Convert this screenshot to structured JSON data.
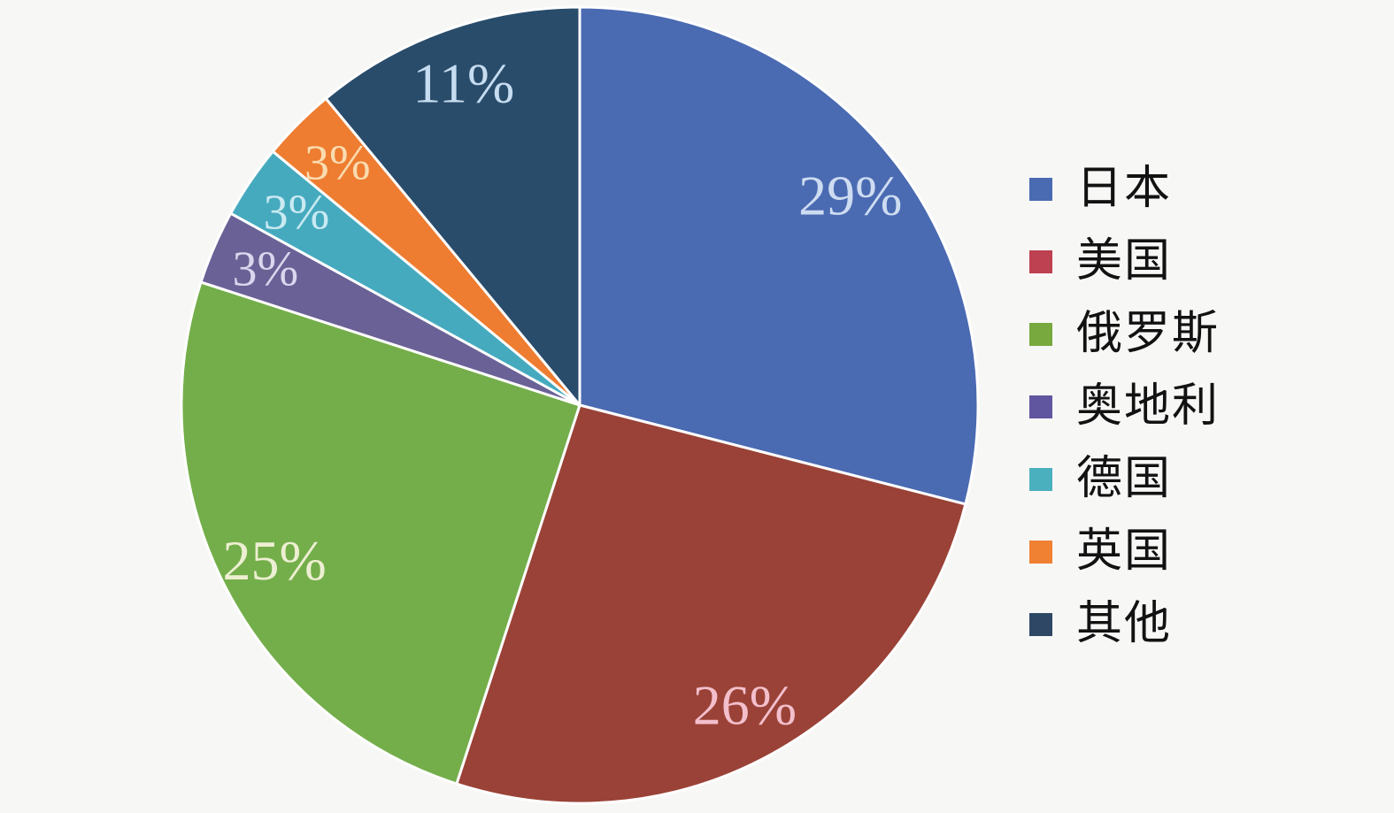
{
  "chart_data": {
    "type": "pie",
    "direction": "clockwise",
    "start_angle_deg": 0,
    "label_radius": 0.86,
    "label_suffix": "%",
    "background": "#f7f7f6",
    "slice_stroke": "#ffffff",
    "legend_position": "right",
    "slices": [
      {
        "id": "japan",
        "label": "日本",
        "value": 29,
        "display": "29%",
        "color": "#4a6ab2",
        "legend_color": "#4a6ab2",
        "label_color": "#cddcf1"
      },
      {
        "id": "usa",
        "label": "美国",
        "value": 26,
        "display": "26%",
        "color": "#9a4237",
        "legend_color": "#bd4150",
        "label_color": "#f3bfcc"
      },
      {
        "id": "russia",
        "label": "俄罗斯",
        "value": 25,
        "display": "25%",
        "color": "#74ae4a",
        "legend_color": "#77a93f",
        "label_color": "#edefd2"
      },
      {
        "id": "austria",
        "label": "奥地利",
        "value": 3,
        "display": "3%",
        "color": "#6a6296",
        "legend_color": "#6056a0",
        "label_color": "#dbd6ee"
      },
      {
        "id": "germany",
        "label": "德国",
        "value": 3,
        "display": "3%",
        "color": "#46aabf",
        "legend_color": "#4bb0be",
        "label_color": "#c9eaf1"
      },
      {
        "id": "uk",
        "label": "英国",
        "value": 3,
        "display": "3%",
        "color": "#ee7d31",
        "legend_color": "#f08032",
        "label_color": "#fadcb0"
      },
      {
        "id": "other",
        "label": "其他",
        "value": 11,
        "display": "11%",
        "color": "#294c6b",
        "legend_color": "#2e4765",
        "label_color": "#c6dcf0"
      }
    ]
  }
}
